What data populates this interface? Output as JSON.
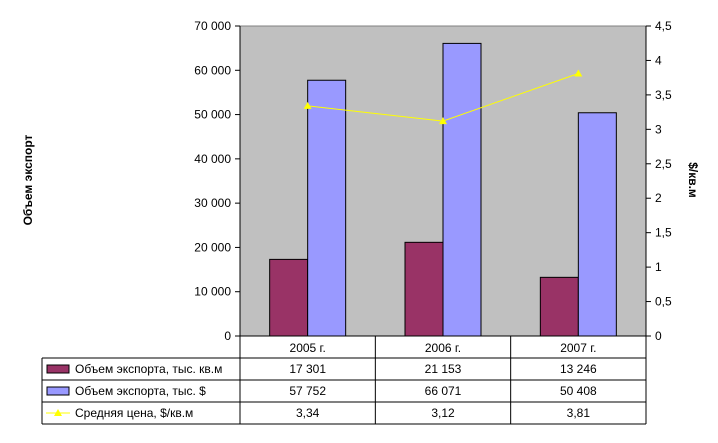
{
  "chart_data": {
    "type": "bar",
    "categories": [
      "2005 г.",
      "2006 г.",
      "2007 г."
    ],
    "series": [
      {
        "name": "Объем экспорта, тыс. кв.м",
        "type": "bar",
        "axis": "left",
        "color": "#993366",
        "values": [
          17301,
          21153,
          13246
        ],
        "labels": [
          "17 301",
          "21 153",
          "13 246"
        ]
      },
      {
        "name": "Объем экспорта, тыс. $",
        "type": "bar",
        "axis": "left",
        "color": "#9999FF",
        "values": [
          57752,
          66071,
          50408
        ],
        "labels": [
          "57 752",
          "66 071",
          "50 408"
        ]
      },
      {
        "name": "Средняя цена, $/кв.м",
        "type": "line",
        "axis": "right",
        "color": "#FFFF00",
        "values": [
          3.34,
          3.12,
          3.81
        ],
        "labels": [
          "3,34",
          "3,12",
          "3,81"
        ]
      }
    ],
    "ylabel": "Объем экспорт",
    "y2label": "$/кв.м",
    "ylim": [
      0,
      70000
    ],
    "y2lim": [
      0,
      4.5
    ],
    "yticks": [
      0,
      10000,
      20000,
      30000,
      40000,
      50000,
      60000,
      70000
    ],
    "ytick_labels": [
      "0",
      "10 000",
      "20 000",
      "30 000",
      "40 000",
      "50 000",
      "60 000",
      "70 000"
    ],
    "y2ticks": [
      0,
      0.5,
      1,
      1.5,
      2,
      2.5,
      3,
      3.5,
      4,
      4.5
    ],
    "y2tick_labels": [
      "0",
      "0,5",
      "1",
      "1,5",
      "2",
      "2,5",
      "3",
      "3,5",
      "4",
      "4,5"
    ],
    "plot_background": "#C0C0C0",
    "grid": false,
    "legend": "data-table-below"
  }
}
